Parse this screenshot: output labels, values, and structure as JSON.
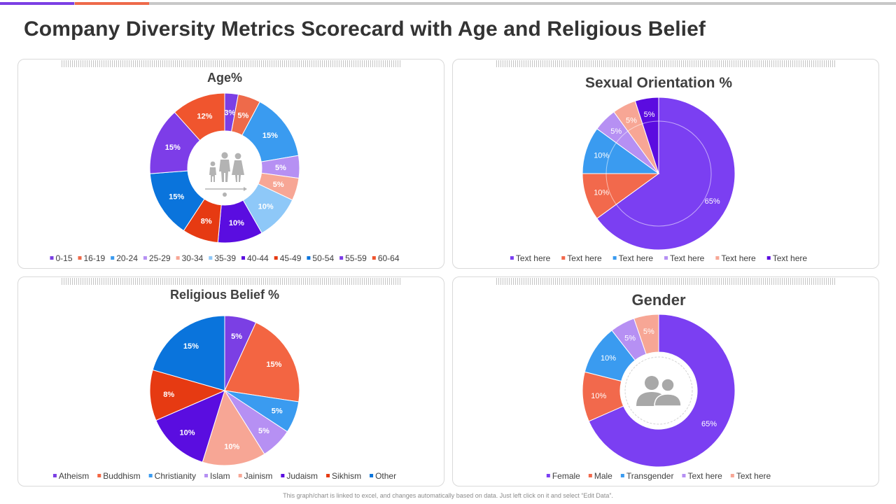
{
  "title": "Company Diversity Metrics  Scorecard with Age and Religious Belief",
  "footnote": "This graph/chart is linked to excel, and changes automatically based on data. Just left click on it and select “Edit Data”.",
  "icons": {
    "age_center": "family-age-icon",
    "gender_center": "people-silhouette-icon"
  },
  "chart_data": [
    {
      "id": "age",
      "type": "pie",
      "donut": true,
      "title": "Age%",
      "categories": [
        "0-15",
        "16-19",
        "20-24",
        "25-29",
        "30-34",
        "35-39",
        "40-44",
        "45-49",
        "50-54",
        "55-59",
        "60-64"
      ],
      "values": [
        3,
        5,
        15,
        5,
        5,
        10,
        10,
        8,
        15,
        15,
        12
      ],
      "labels": [
        "3%",
        "5%",
        "15%",
        "5%",
        "5%",
        "10%",
        "10%",
        "8%",
        "15%",
        "15%",
        "12%"
      ],
      "colors": [
        "#7b3fe4",
        "#ee6a4a",
        "#3a9bf0",
        "#b690f3",
        "#f7a695",
        "#8ec8f8",
        "#5a0de0",
        "#e63a12",
        "#0a74dc",
        "#7d3de8",
        "#f0552e"
      ],
      "legend": "bottom"
    },
    {
      "id": "sexual",
      "type": "pie",
      "title": "Sexual Orientation %",
      "categories": [
        "Text here",
        "Text here",
        "Text here",
        "Text here",
        "Text here",
        "Text here"
      ],
      "values": [
        65,
        10,
        10,
        5,
        5,
        5
      ],
      "labels": [
        "65%",
        "10%",
        "10%",
        "5%",
        "5%",
        "5%"
      ],
      "colors": [
        "#7b3ff2",
        "#f2694c",
        "#3a9bf0",
        "#b690f3",
        "#f7a695",
        "#5b0ce0"
      ],
      "legend": "bottom"
    },
    {
      "id": "religion",
      "type": "pie",
      "title": "Religious Belief %",
      "categories": [
        "Atheism",
        "Buddhism",
        "Christianity",
        "Islam",
        "Jainism",
        "Judaism",
        "Sikhism",
        "Other"
      ],
      "values": [
        5,
        15,
        5,
        5,
        10,
        10,
        8,
        15
      ],
      "labels": [
        "5%",
        "15%",
        "5%",
        "5%",
        "10%",
        "10%",
        "8%",
        "15%"
      ],
      "colors": [
        "#7b3fe4",
        "#f36542",
        "#3a9bf0",
        "#b690f3",
        "#f7a695",
        "#5a0de0",
        "#e63a12",
        "#0a74dc"
      ],
      "legend": "bottom"
    },
    {
      "id": "gender",
      "type": "pie",
      "donut": true,
      "title": "Gender",
      "categories": [
        "Female",
        "Male",
        "Transgender",
        "Text here",
        "Text here"
      ],
      "values": [
        65,
        10,
        10,
        5,
        5
      ],
      "labels": [
        "65%",
        "10%",
        "10%",
        "5%",
        "5%"
      ],
      "colors": [
        "#7b3ff2",
        "#f2694c",
        "#3a9bf0",
        "#b690f3",
        "#f7a695"
      ],
      "legend": "bottom"
    }
  ]
}
